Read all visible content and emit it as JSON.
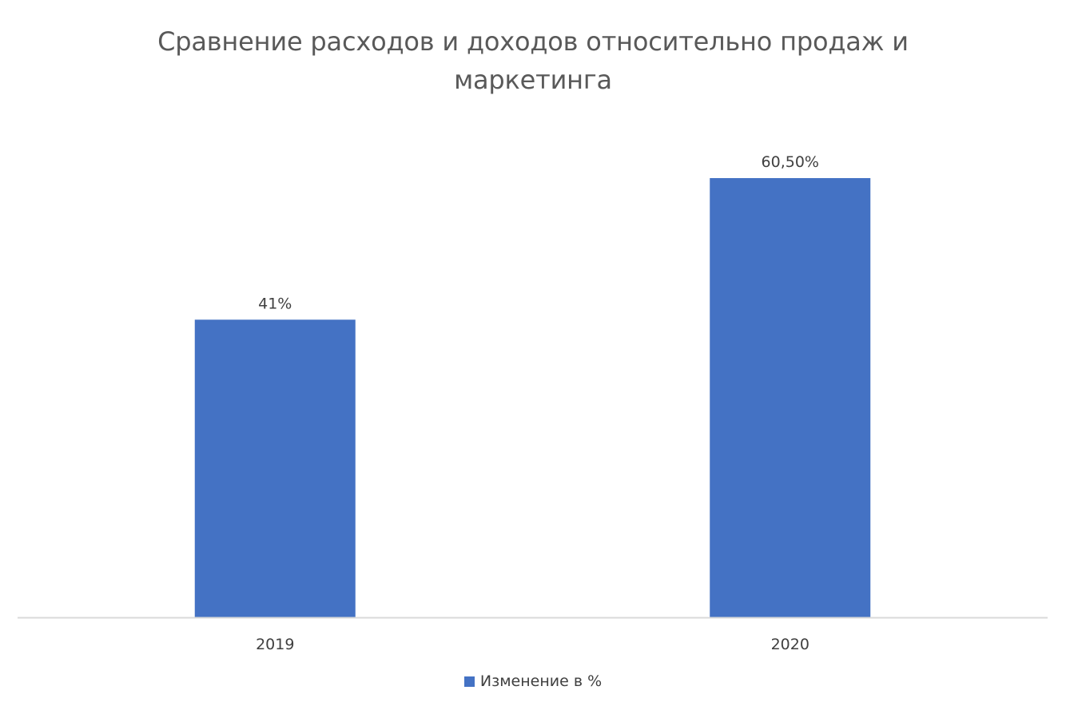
{
  "chart_data": {
    "type": "bar",
    "title": "Сравнение расходов и доходов относительно продаж и маркетинга",
    "title_lines": [
      "Сравнение расходов и доходов относительно продаж и",
      "маркетинга"
    ],
    "categories": [
      "2019",
      "2020"
    ],
    "series": [
      {
        "name": "Изменение в %",
        "values": [
          41,
          60.5
        ],
        "labels": [
          "41%",
          "60,50%"
        ],
        "color": "#4472C4"
      }
    ],
    "ylim": [
      0,
      75
    ],
    "grid": false,
    "legend_position": "bottom",
    "xlabel": "",
    "ylabel": ""
  }
}
